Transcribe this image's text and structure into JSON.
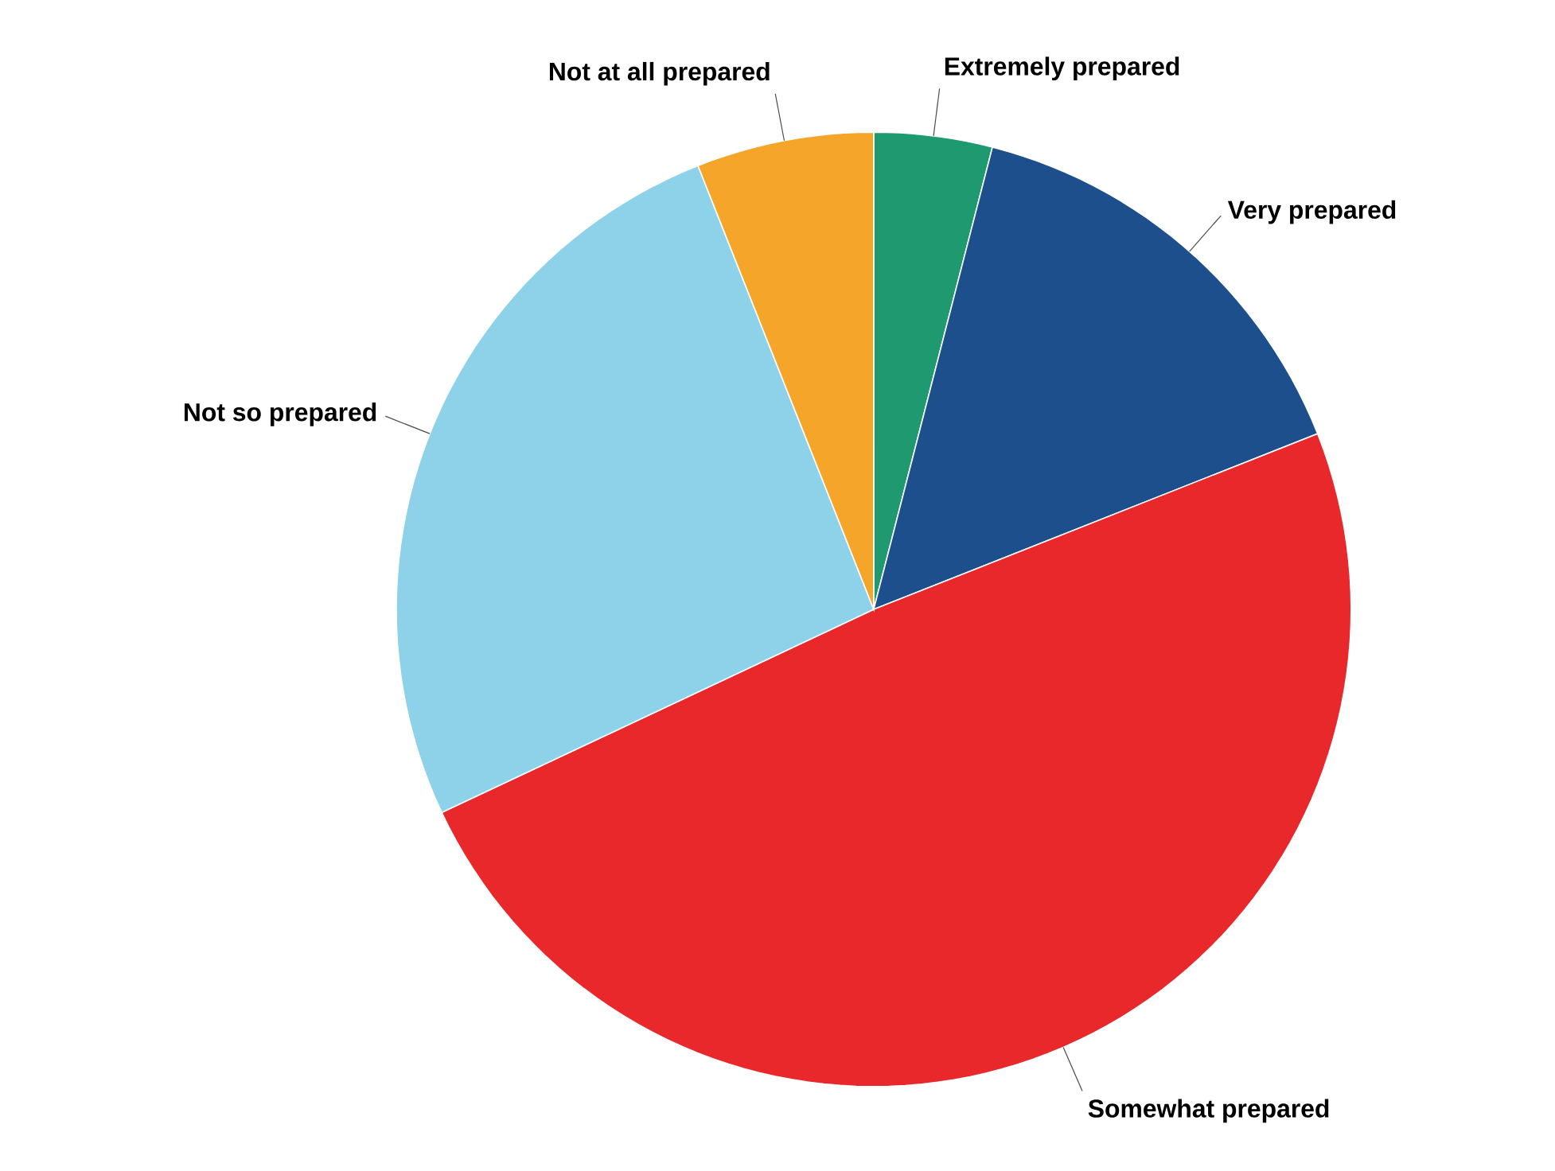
{
  "chart_data": {
    "type": "pie",
    "categories": [
      "Extremely prepared",
      "Very prepared",
      "Somewhat prepared",
      "Not so prepared",
      "Not at all prepared"
    ],
    "values": [
      4,
      15,
      49,
      26,
      6
    ],
    "colors": [
      "#1f9a70",
      "#1c4f8c",
      "#e8282b",
      "#8ed2ea",
      "#f5a52a"
    ]
  }
}
